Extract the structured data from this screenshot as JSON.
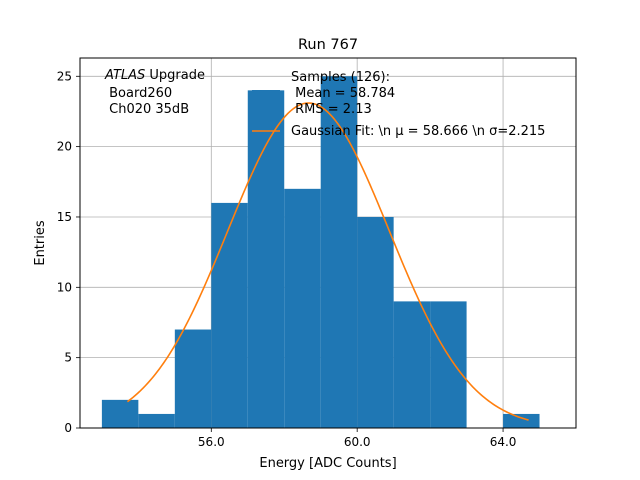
{
  "chart_data": {
    "type": "bar",
    "title": "Run 767",
    "xlabel": "Energy [ADC Counts]",
    "ylabel": "Entries",
    "xlim": [
      52.4,
      66.0
    ],
    "ylim": [
      0,
      26.3
    ],
    "xticks": [
      56.0,
      60.0,
      64.0
    ],
    "xtick_labels": [
      "56.0",
      "60.0",
      "64.0"
    ],
    "yticks": [
      0,
      5,
      10,
      15,
      20,
      25
    ],
    "ytick_labels": [
      "0",
      "5",
      "10",
      "15",
      "20",
      "25"
    ],
    "grid": true,
    "bar_color": "#1f77b4",
    "fit_color": "#ff7f0e",
    "histogram": {
      "bin_edges": [
        53.0,
        54.0,
        55.0,
        56.0,
        57.0,
        58.0,
        59.0,
        60.0,
        61.0,
        62.0,
        63.0,
        64.0,
        65.0
      ],
      "counts": [
        2,
        1,
        7,
        16,
        24,
        17,
        25,
        15,
        9,
        9,
        0,
        1
      ]
    },
    "gaussian_fit": {
      "mu": 58.666,
      "sigma": 2.215,
      "amplitude": 23.1,
      "x_range": [
        53.7,
        64.7
      ]
    },
    "annotation_lines": [
      "ATLAS Upgrade",
      " Board260",
      " Ch020 35dB"
    ],
    "legend": {
      "placement": "upper-right",
      "entries": [
        {
          "kind": "bar",
          "lines": [
            "Samples (126):",
            " Mean = 58.784",
            " RMS = 2.13"
          ]
        },
        {
          "kind": "line",
          "text": "Gaussian Fit: \\n μ = 58.666 \\n σ=2.215"
        }
      ]
    }
  }
}
